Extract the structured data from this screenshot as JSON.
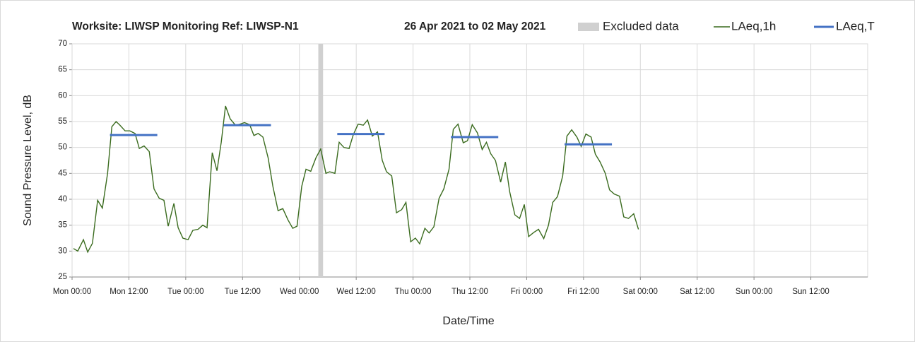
{
  "chart_data": {
    "type": "line",
    "title": "Worksite: LIWSP Monitoring Ref: LIWSP-N1",
    "subtitle": "26 Apr 2021 to 02 May 2021",
    "x_label": "Date/Time",
    "y_label": "Sound Pressure Level, dB",
    "xlim": [
      0,
      168
    ],
    "xticks": [
      {
        "value": 0,
        "label": "Mon 00:00"
      },
      {
        "value": 12,
        "label": "Mon 12:00"
      },
      {
        "value": 24,
        "label": "Tue 00:00"
      },
      {
        "value": 36,
        "label": "Tue 12:00"
      },
      {
        "value": 48,
        "label": "Wed 00:00"
      },
      {
        "value": 60,
        "label": "Wed 12:00"
      },
      {
        "value": 72,
        "label": "Thu 00:00"
      },
      {
        "value": 84,
        "label": "Thu 12:00"
      },
      {
        "value": 96,
        "label": "Fri 00:00"
      },
      {
        "value": 108,
        "label": "Fri 12:00"
      },
      {
        "value": 120,
        "label": "Sat 00:00"
      },
      {
        "value": 132,
        "label": "Sat 12:00"
      },
      {
        "value": 144,
        "label": "Sun 00:00"
      },
      {
        "value": 156,
        "label": "Sun 12:00"
      }
    ],
    "ylim": [
      25,
      70
    ],
    "yticks": [
      25,
      30,
      35,
      40,
      45,
      50,
      55,
      60,
      65,
      70
    ],
    "grid": true,
    "excluded": {
      "name": "Excluded data",
      "color": "#d0d0d0",
      "x": [
        52,
        53
      ]
    },
    "series": [
      {
        "name": "LAeq,1h",
        "color": "#3a6b1e",
        "x": [
          0.3,
          1.2,
          2.4,
          3.3,
          4.3,
          5.4,
          6.4,
          7.5,
          8.4,
          9.3,
          10.1,
          11.2,
          12.2,
          13.3,
          14.2,
          15.2,
          16.3,
          17.3,
          18.4,
          19.4,
          20.3,
          21.5,
          22.4,
          23.4,
          24.5,
          25.5,
          26.6,
          27.6,
          28.5,
          29.6,
          30.6,
          31.5,
          32.4,
          33.4,
          34.5,
          35.5,
          36.4,
          37.5,
          38.4,
          39.3,
          40.3,
          41.4,
          42.4,
          43.5,
          44.5,
          45.6,
          46.6,
          47.5,
          48.5,
          49.4,
          50.4,
          51.5,
          52.5,
          53.6,
          54.4,
          55.5,
          56.4,
          57.4,
          58.5,
          59.4,
          60.4,
          61.5,
          62.4,
          63.4,
          64.5,
          65.5,
          66.4,
          67.5,
          68.5,
          69.6,
          70.5,
          71.5,
          72.5,
          73.4,
          74.5,
          75.4,
          76.4,
          77.5,
          78.5,
          79.6,
          80.5,
          81.5,
          82.6,
          83.5,
          84.5,
          85.6,
          86.6,
          87.5,
          88.4,
          89.4,
          90.5,
          91.5,
          92.4,
          93.5,
          94.5,
          95.5,
          96.4,
          97.5,
          98.5,
          99.6,
          100.6,
          101.5,
          102.5,
          103.6,
          104.5,
          105.5,
          106.6,
          107.5,
          108.5,
          109.6,
          110.5,
          111.5,
          112.6,
          113.5,
          114.5,
          115.6,
          116.5,
          117.5,
          118.6,
          119.6
        ],
        "values": [
          30.5,
          30,
          32.2,
          29.8,
          31.5,
          39.8,
          38.3,
          45,
          54,
          55,
          54.3,
          53.2,
          53.2,
          52.7,
          49.8,
          50.3,
          49.2,
          42,
          40.2,
          39.8,
          34.8,
          39.2,
          34.5,
          32.5,
          32.2,
          34,
          34.2,
          35,
          34.5,
          49,
          45.5,
          51,
          58,
          55.5,
          54.3,
          54.5,
          54.8,
          54.4,
          52.3,
          52.7,
          52,
          48,
          42.5,
          37.8,
          38.2,
          36,
          34.4,
          34.8,
          42.5,
          45.8,
          45.4,
          48,
          49.7,
          45,
          45.3,
          45,
          51,
          50,
          49.8,
          52.5,
          54.5,
          54.3,
          55.3,
          52.2,
          53,
          47.5,
          45.3,
          44.5,
          37.4,
          38,
          39.4,
          31.8,
          32.5,
          31.4,
          34.4,
          33.5,
          34.7,
          40.2,
          42,
          45.8,
          53.5,
          54.5,
          50.9,
          51.3,
          54.4,
          52.8,
          49.6,
          51,
          48.8,
          47.5,
          43.3,
          47.2,
          41.5,
          37,
          36.3,
          39,
          32.8,
          33.6,
          34.2,
          32.4,
          35,
          39.4,
          40.5,
          44.5,
          52.2,
          53.4,
          52,
          50.2,
          52.6,
          52,
          48.7,
          47.2,
          45,
          41.8,
          41,
          40.6,
          36.6,
          36.3,
          37.2,
          34.2
        ]
      },
      {
        "name": "LAeq,T",
        "color": "#4472c4",
        "x_start": [
          8,
          32,
          56,
          80,
          104
        ],
        "x_end": [
          18,
          42,
          66,
          90,
          114
        ],
        "values": [
          52.4,
          54.3,
          52.6,
          52,
          50.6
        ]
      }
    ]
  }
}
